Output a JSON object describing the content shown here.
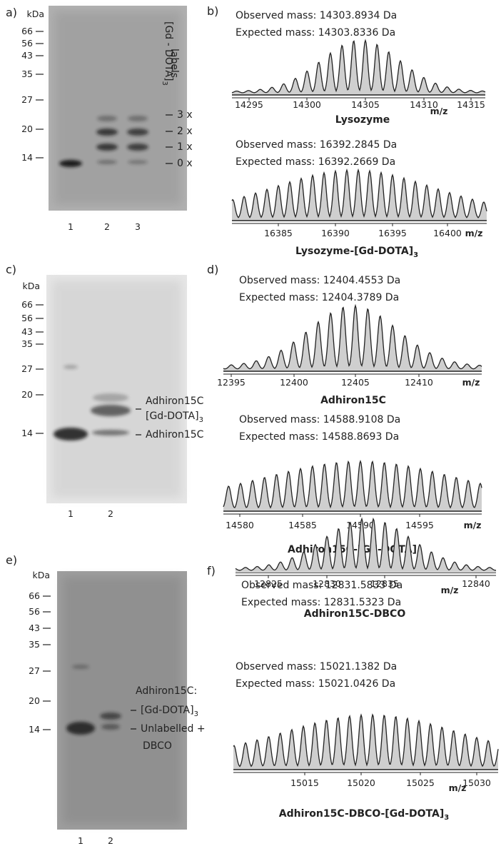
{
  "panel_a": {
    "label": "a)",
    "unit": "kDa",
    "markers": [
      "66",
      "56",
      "43",
      "35",
      "27",
      "20",
      "14"
    ],
    "lanes": [
      "1",
      "2",
      "3"
    ],
    "side_title": "[Gd - DOTA]",
    "side_title_sub": "3",
    "side_title_line2": "labels",
    "band_labels": [
      "3 x",
      "2 x",
      "1 x",
      "0 x"
    ]
  },
  "panel_b": {
    "label": "b)",
    "spectra": [
      {
        "observed": "Observed mass: 14303.8934 Da",
        "expected": "Expected mass: 14303.8336 Da",
        "ticks": [
          "14295",
          "14300",
          "14305",
          "14310",
          "14315"
        ],
        "axis_unit": "m/z",
        "name": "Lysozyme",
        "name_sub": ""
      },
      {
        "observed": "Observed mass: 16392.2845 Da",
        "expected": "Expected mass: 16392.2669 Da",
        "ticks": [
          "16385",
          "16390",
          "16395",
          "16400"
        ],
        "axis_unit": "m/z",
        "name": "Lysozyme-[Gd-DOTA]",
        "name_sub": "3"
      }
    ]
  },
  "panel_c": {
    "label": "c)",
    "unit": "kDa",
    "markers": [
      "66",
      "56",
      "43",
      "35",
      "27",
      "20",
      "14"
    ],
    "lanes": [
      "1",
      "2"
    ],
    "band_labels": [
      "Adhiron15C",
      "[Gd-DOTA]",
      "Adhiron15C"
    ],
    "band_label_sub": "3"
  },
  "panel_d": {
    "label": "d)",
    "spectra": [
      {
        "observed": "Observed mass: 12404.4553 Da",
        "expected": "Expected mass: 12404.3789 Da",
        "ticks": [
          "12395",
          "12400",
          "12405",
          "12410"
        ],
        "axis_unit": "m/z",
        "name": "Adhiron15C",
        "name_sub": ""
      },
      {
        "observed": "Observed mass: 14588.9108 Da",
        "expected": "Expected mass: 14588.8693 Da",
        "ticks": [
          "14580",
          "14585",
          "14590",
          "14595"
        ],
        "axis_unit": "m/z",
        "name": "Adhiron15C-[Gd-DOTA]",
        "name_sub": "3"
      }
    ]
  },
  "panel_e": {
    "label": "e)",
    "unit": "kDa",
    "markers": [
      "66",
      "56",
      "43",
      "35",
      "27",
      "20",
      "14"
    ],
    "lanes": [
      "1",
      "2"
    ],
    "band_labels": [
      "Adhiron15C:",
      "[Gd-DOTA]",
      "Unlabelled +",
      "DBCO"
    ],
    "band_label_sub": "3"
  },
  "panel_f": {
    "label": "f)",
    "spectra": [
      {
        "observed": "Observed mass: 12831.5833 Da",
        "expected": "Expected mass: 12831.5323 Da",
        "ticks": [
          "12825",
          "12830",
          "12835",
          "12840"
        ],
        "axis_unit": "m/z",
        "name": "Adhiron15C-DBCO",
        "name_sub": ""
      },
      {
        "observed": "Observed mass: 15021.1382 Da",
        "expected": "Expected mass: 15021.0426 Da",
        "ticks": [
          "15015",
          "15020",
          "15025",
          "15030"
        ],
        "axis_unit": "m/z",
        "name": "Adhiron15C-DBCO-[Gd-DOTA]",
        "name_sub": "3"
      }
    ]
  }
}
